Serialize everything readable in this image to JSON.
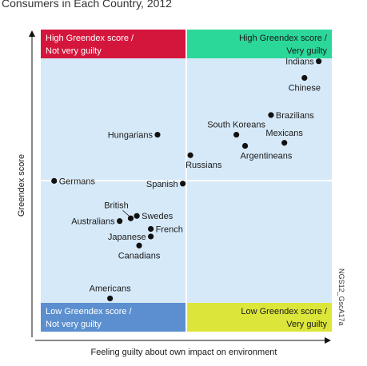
{
  "title": "Consumers in Each Country, 2012",
  "side_code": "NGS12_GscA17a",
  "colors": {
    "panel_bg": "#d6e9f8",
    "divider": "#ffffff",
    "top_left": "#d4163c",
    "top_right": "#2bd89a",
    "bottom_left": "#5b8fcf",
    "bottom_right": "#dce63a",
    "point": "#111111",
    "axis": "#111111"
  },
  "chart_data": {
    "type": "scatter",
    "xlabel": "Feeling guilty about own impact on environment",
    "ylabel": "Greendex score",
    "xlim": [
      0,
      100
    ],
    "ylim": [
      0,
      100
    ],
    "quadrant_split": {
      "x": 50,
      "y": 50
    },
    "quadrants": [
      {
        "key": "top_left",
        "line1": "High Greendex score /",
        "line2": "Not very guilty"
      },
      {
        "key": "top_right",
        "line1": "High Greendex score /",
        "line2": "Very guilty"
      },
      {
        "key": "bottom_left",
        "line1": "Low Greendex score /",
        "line2": "Not very guilty"
      },
      {
        "key": "bottom_right",
        "line1": "Low Greendex score /",
        "line2": "Very guilty"
      }
    ],
    "points": [
      {
        "label": "Indians",
        "x": 95.5,
        "y": 89.5,
        "anchor": "end"
      },
      {
        "label": "Chinese",
        "x": 90.6,
        "y": 84.0,
        "anchor": "middle-below"
      },
      {
        "label": "Brazilians",
        "x": 79.1,
        "y": 71.7,
        "anchor": "start"
      },
      {
        "label": "South Koreans",
        "x": 67.2,
        "y": 65.2,
        "anchor": "middle-above"
      },
      {
        "label": "Mexicans",
        "x": 83.7,
        "y": 62.5,
        "anchor": "middle-above"
      },
      {
        "label": "Argentineans",
        "x": 70.2,
        "y": 61.5,
        "anchor": "start-below"
      },
      {
        "label": "Hungarians",
        "x": 40.1,
        "y": 65.2,
        "anchor": "end"
      },
      {
        "label": "Russians",
        "x": 51.4,
        "y": 58.4,
        "anchor": "start-below"
      },
      {
        "label": "Germans",
        "x": 4.6,
        "y": 49.9,
        "anchor": "start"
      },
      {
        "label": "Spanish",
        "x": 48.8,
        "y": 49.0,
        "anchor": "end"
      },
      {
        "label": "British",
        "x": 30.9,
        "y": 37.5,
        "anchor": "leader"
      },
      {
        "label": "Swedes",
        "x": 33.0,
        "y": 38.3,
        "anchor": "start"
      },
      {
        "label": "Australians",
        "x": 27.1,
        "y": 36.6,
        "anchor": "end"
      },
      {
        "label": "French",
        "x": 37.8,
        "y": 34.0,
        "anchor": "start"
      },
      {
        "label": "Japanese",
        "x": 37.8,
        "y": 31.5,
        "anchor": "end"
      },
      {
        "label": "Canadians",
        "x": 33.8,
        "y": 28.5,
        "anchor": "middle-below"
      },
      {
        "label": "Americans",
        "x": 23.8,
        "y": 11.0,
        "anchor": "middle-above"
      }
    ]
  }
}
